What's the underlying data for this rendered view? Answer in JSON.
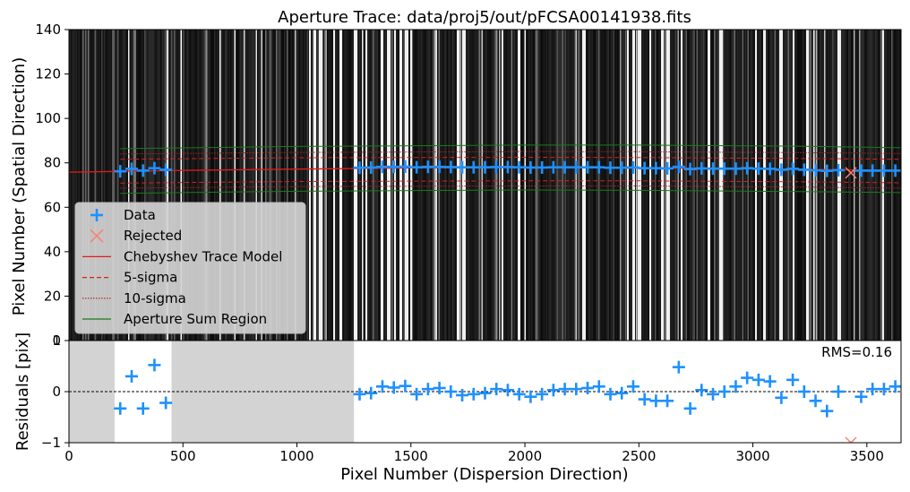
{
  "chart_data": [
    {
      "type": "scatter",
      "title": "Aperture Trace: data/proj5/out/pFCSA00141938.fits",
      "xlabel": "",
      "ylabel": "Pixel Number (Spatial Direction)",
      "xlim": [
        0,
        3650
      ],
      "ylim": [
        0,
        140
      ],
      "yticks": [
        0,
        20,
        40,
        60,
        80,
        100,
        120,
        140
      ],
      "background": "grayscale spectral image with vertical emission lines",
      "grid": false,
      "legend_position": "lower-left",
      "legend": [
        "Data",
        "Rejected",
        "Chebyshev Trace Model",
        "5-sigma",
        "10-sigma",
        "Aperture Sum Region"
      ],
      "series": [
        {
          "name": "Data",
          "marker": "+",
          "color": "#1e90ff",
          "x": [
            225,
            275,
            325,
            375,
            425,
            1275,
            1325,
            1375,
            1425,
            1475,
            1525,
            1575,
            1625,
            1675,
            1725,
            1775,
            1825,
            1875,
            1925,
            1975,
            2025,
            2075,
            2125,
            2175,
            2225,
            2275,
            2325,
            2375,
            2425,
            2475,
            2525,
            2575,
            2625,
            2675,
            2725,
            2775,
            2825,
            2875,
            2925,
            2975,
            3025,
            3075,
            3125,
            3175,
            3225,
            3275,
            3325,
            3375,
            3475,
            3525,
            3575,
            3625
          ],
          "y": [
            76.2,
            77.3,
            76.5,
            77.6,
            76.9,
            77.8,
            77.9,
            78.2,
            78.2,
            78.3,
            78.0,
            78.2,
            78.2,
            78.1,
            78.0,
            78.0,
            78.0,
            78.1,
            78.1,
            78.0,
            77.9,
            77.9,
            78.0,
            78.0,
            78.0,
            78.0,
            78.0,
            77.8,
            77.8,
            77.9,
            77.6,
            77.6,
            77.5,
            78.2,
            77.2,
            77.5,
            77.4,
            77.4,
            77.4,
            77.6,
            77.4,
            77.3,
            76.9,
            77.3,
            76.9,
            76.6,
            76.4,
            76.7,
            76.5,
            76.5,
            76.5,
            76.5
          ]
        },
        {
          "name": "Rejected",
          "marker": "x",
          "color": "#fa8072",
          "x": [
            3430
          ],
          "y": [
            75.5
          ]
        },
        {
          "name": "Chebyshev Trace Model",
          "style": "solid",
          "color": "#e41a1c",
          "x": [
            0,
            500,
            1000,
            1500,
            2000,
            2500,
            3000,
            3500,
            3650
          ],
          "y": [
            75.8,
            76.6,
            77.2,
            77.7,
            77.9,
            77.8,
            77.4,
            76.7,
            76.4
          ]
        },
        {
          "name": "5-sigma",
          "style": "dashed",
          "color": "#e41a1c",
          "upper": [
            81.6,
            82.3,
            82.5,
            82.4,
            82.0,
            81.6
          ],
          "lower": [
            70.9,
            71.6,
            71.9,
            71.9,
            71.5,
            71.0
          ],
          "x": [
            225,
            1000,
            2000,
            2500,
            3200,
            3650
          ]
        },
        {
          "name": "10-sigma",
          "style": "dotted",
          "color": "#b22222",
          "upper": [
            84.0,
            84.7,
            85.1,
            85.0,
            84.6,
            84.2
          ],
          "lower": [
            68.6,
            69.3,
            69.6,
            69.6,
            69.1,
            68.6
          ],
          "x": [
            225,
            1000,
            2000,
            2500,
            3200,
            3650
          ]
        },
        {
          "name": "Aperture Sum Region",
          "style": "solid",
          "color": "#1a7a1a",
          "upper": [
            86.4,
            87.4,
            88.0,
            88.0,
            87.5,
            86.8
          ],
          "lower": [
            66.3,
            67.2,
            67.8,
            67.6,
            67.1,
            66.6
          ],
          "x": [
            225,
            1000,
            2000,
            2500,
            3200,
            3650
          ]
        }
      ]
    },
    {
      "type": "scatter",
      "title": "",
      "xlabel": "Pixel Number (Dispersion Direction)",
      "ylabel": "Residuals [pix]",
      "xlim": [
        0,
        3650
      ],
      "ylim": [
        -1,
        1
      ],
      "xticks": [
        0,
        500,
        1000,
        1500,
        2000,
        2500,
        3000,
        3500
      ],
      "yticks": [
        -1,
        0,
        1
      ],
      "annotation": "RMS=0.16",
      "zero_line": "dashed",
      "masked_regions": [
        [
          0,
          200
        ],
        [
          450,
          1250
        ]
      ],
      "series": [
        {
          "name": "Data",
          "marker": "+",
          "color": "#1e90ff",
          "x": [
            225,
            275,
            325,
            375,
            425,
            1275,
            1325,
            1375,
            1425,
            1475,
            1525,
            1575,
            1625,
            1675,
            1725,
            1775,
            1825,
            1875,
            1925,
            1975,
            2025,
            2075,
            2125,
            2175,
            2225,
            2275,
            2325,
            2375,
            2425,
            2475,
            2525,
            2575,
            2625,
            2675,
            2725,
            2775,
            2825,
            2875,
            2925,
            2975,
            3025,
            3075,
            3125,
            3175,
            3225,
            3275,
            3325,
            3375,
            3475,
            3525,
            3575,
            3625
          ],
          "y": [
            -0.33,
            0.3,
            -0.33,
            0.52,
            -0.22,
            -0.05,
            -0.03,
            0.1,
            0.08,
            0.11,
            -0.05,
            0.05,
            0.07,
            0.0,
            -0.07,
            -0.05,
            -0.03,
            0.05,
            0.03,
            -0.05,
            -0.1,
            -0.05,
            0.03,
            0.05,
            0.05,
            0.07,
            0.1,
            -0.05,
            -0.03,
            0.1,
            -0.15,
            -0.18,
            -0.18,
            0.48,
            -0.33,
            0.03,
            -0.05,
            0.0,
            0.1,
            0.27,
            0.23,
            0.2,
            -0.12,
            0.23,
            0.0,
            -0.18,
            -0.38,
            0.0,
            -0.1,
            0.05,
            0.05,
            0.1
          ]
        },
        {
          "name": "Rejected",
          "marker": "x",
          "color": "#fa8072",
          "x": [
            3430
          ],
          "y": [
            -1.0
          ]
        }
      ]
    }
  ]
}
